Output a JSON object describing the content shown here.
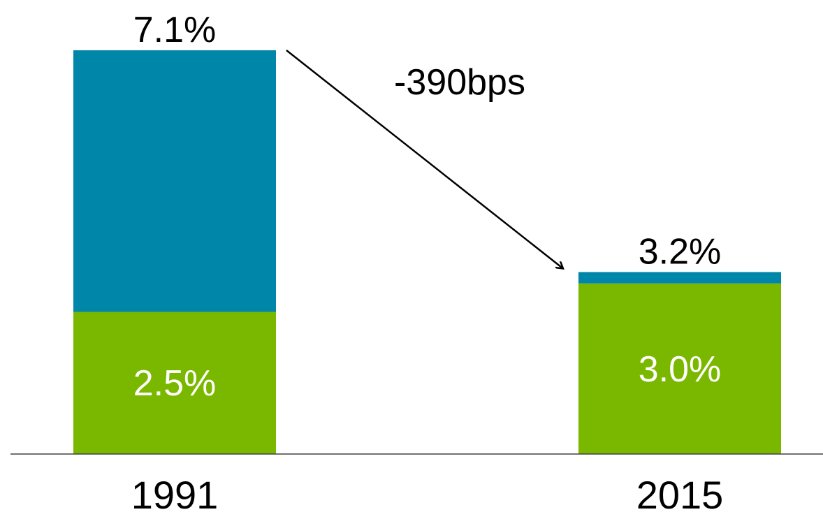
{
  "chart_data": {
    "type": "bar",
    "stacked": true,
    "categories": [
      "1991",
      "2015"
    ],
    "series": [
      {
        "color": "#7ab800",
        "values": [
          2.5,
          3.0
        ],
        "labels": [
          "2.5%",
          "3.0%"
        ]
      },
      {
        "color": "#0086a8",
        "values": [
          4.6,
          0.2
        ]
      }
    ],
    "totals": [
      7.1,
      3.2
    ],
    "total_labels": [
      "7.1%",
      "3.2%"
    ],
    "annotation": {
      "text": "-390bps",
      "from": "1991",
      "to": "2015"
    },
    "ylim": [
      0,
      7.1
    ],
    "grid": false,
    "legend": "none",
    "axis_color": "#404040",
    "text_color": "#000000",
    "inner_label_color": "#ffffff"
  }
}
